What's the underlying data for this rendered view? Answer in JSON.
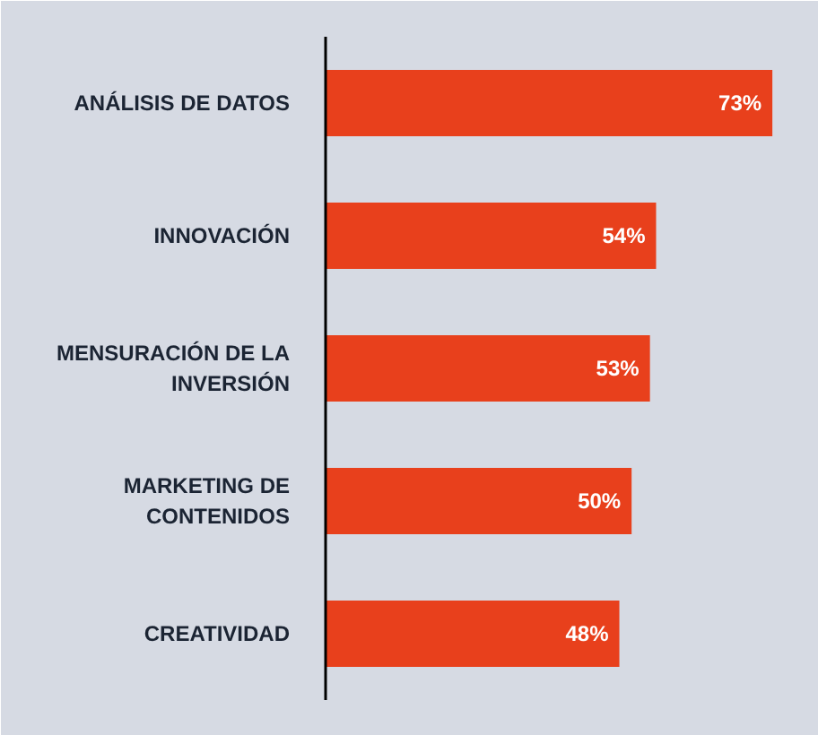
{
  "chart_data": {
    "type": "bar",
    "orientation": "horizontal",
    "categories": [
      "ANÁLISIS DE DATOS",
      "INNOVACIÓN",
      "MENSURACIÓN DE LA INVERSIÓN",
      "MARKETING DE CONTENIDOS",
      "CREATIVIDAD"
    ],
    "values": [
      73,
      54,
      53,
      50,
      48
    ],
    "value_labels": [
      "73%",
      "54%",
      "53%",
      "50%",
      "48%"
    ],
    "color": "#e8401c",
    "grid": false
  }
}
